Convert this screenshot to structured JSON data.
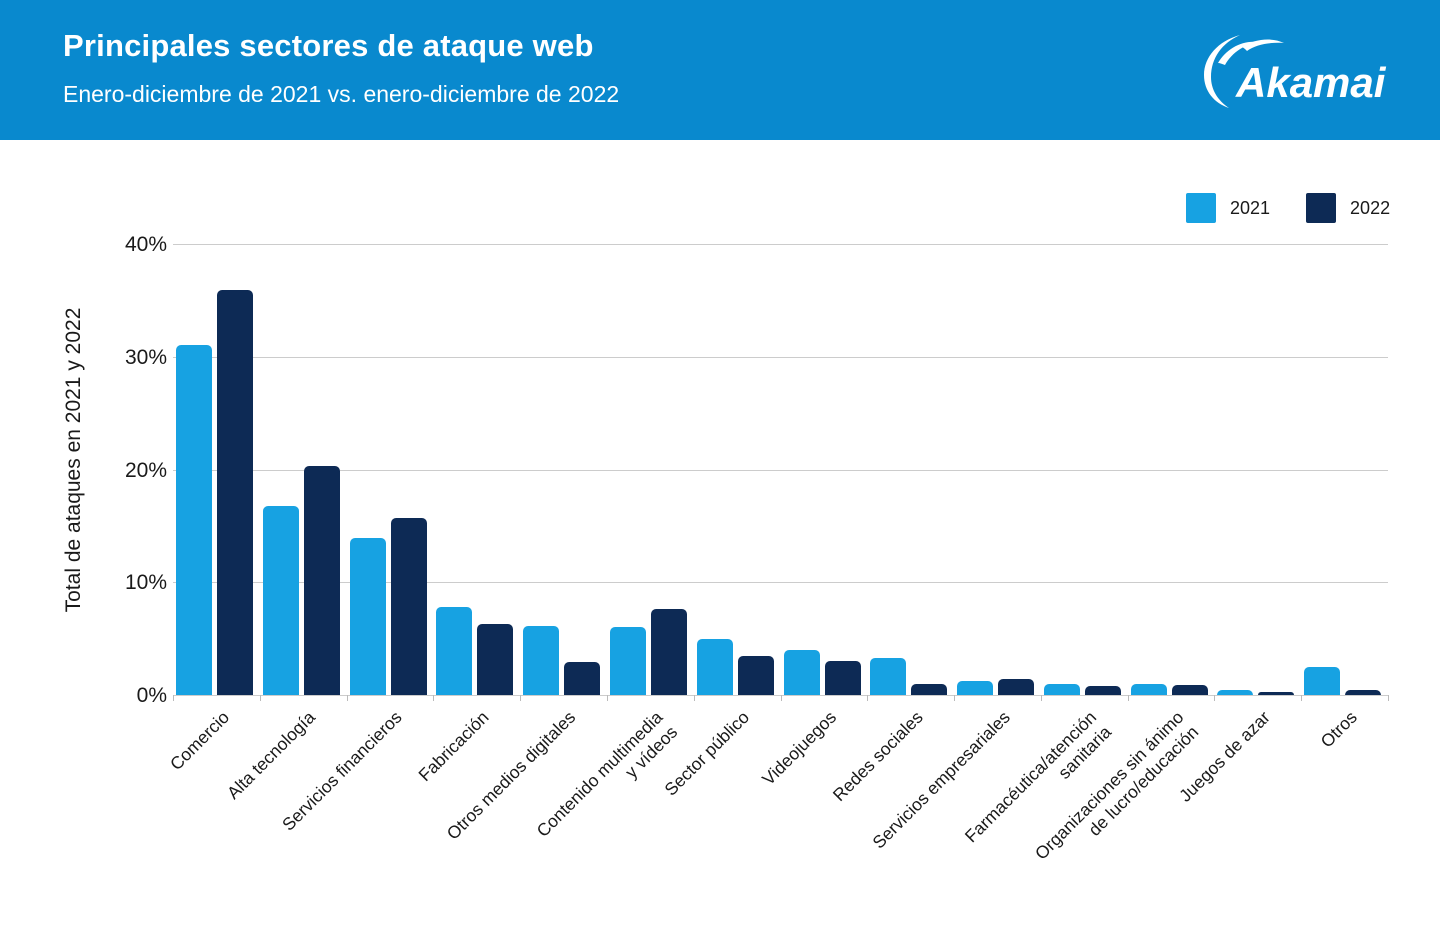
{
  "header": {
    "title": "Principales sectores de ataque web",
    "subtitle": "Enero-diciembre de 2021 vs. enero-diciembre de 2022",
    "logo_text": "Akamai"
  },
  "legend": [
    {
      "label": "2021",
      "color": "#17A2E2"
    },
    {
      "label": "2022",
      "color": "#0D2A55"
    }
  ],
  "colors": {
    "header_bg": "#0989CE",
    "series_2021": "#17A2E2",
    "series_2022": "#0D2A55",
    "gridline": "#cccccc",
    "text": "#1a1a1a",
    "logo": "#ffffff"
  },
  "chart_data": {
    "type": "bar",
    "title": "Principales sectores de ataque web",
    "subtitle": "Enero-diciembre de 2021 vs. enero-diciembre de 2022",
    "xlabel": "",
    "ylabel": "Total de ataques en 2021 y 2022",
    "ylim": [
      0,
      40
    ],
    "yticks": [
      {
        "value": 0,
        "label": "0%"
      },
      {
        "value": 10,
        "label": "10%"
      },
      {
        "value": 20,
        "label": "20%"
      },
      {
        "value": 30,
        "label": "30%"
      },
      {
        "value": 40,
        "label": "40%"
      }
    ],
    "grid": true,
    "legend_position": "top-right",
    "categories": [
      "Comercio",
      "Alta tecnología",
      "Servicios financieros",
      "Fabricación",
      "Otros medios digitales",
      "Contenido multimedia\ny vídeos",
      "Sector público",
      "Videojuegos",
      "Redes sociales",
      "Servicios empresariales",
      "Farmacéutica/atención\nsanitaria",
      "Organizaciones sin ánimo\nde lucro/educación",
      "Juegos de azar",
      "Otros"
    ],
    "series": [
      {
        "name": "2021",
        "color": "#17A2E2",
        "values": [
          31.0,
          16.8,
          13.9,
          7.8,
          6.1,
          6.0,
          5.0,
          4.0,
          3.3,
          1.2,
          1.0,
          1.0,
          0.4,
          2.5
        ]
      },
      {
        "name": "2022",
        "color": "#0D2A55",
        "values": [
          35.9,
          20.3,
          15.7,
          6.3,
          2.9,
          7.6,
          3.5,
          3.0,
          1.0,
          1.4,
          0.8,
          0.9,
          0.3,
          0.4
        ]
      }
    ]
  }
}
